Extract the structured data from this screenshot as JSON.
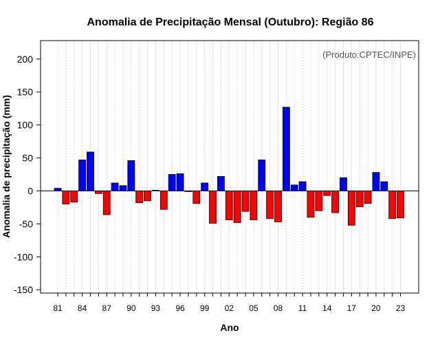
{
  "chart_data": {
    "type": "bar",
    "title": "Anomalia de Precipitação Mensal (Outubro): Região 86",
    "xlabel": "Ano",
    "ylabel": "Anomalia de precipitação (mm)",
    "credit": "(Produto:CPTEC/INPE)",
    "ylim": [
      -155,
      228
    ],
    "yticks": [
      200,
      150,
      100,
      50,
      0,
      -50,
      -100,
      -150
    ],
    "x": [
      1981,
      1982,
      1983,
      1984,
      1985,
      1986,
      1987,
      1988,
      1989,
      1990,
      1991,
      1992,
      1993,
      1994,
      1995,
      1996,
      1997,
      1998,
      1999,
      2000,
      2001,
      2002,
      2003,
      2004,
      2005,
      2006,
      2007,
      2008,
      2009,
      2010,
      2011,
      2012,
      2013,
      2014,
      2015,
      2016,
      2017,
      2018,
      2019,
      2020,
      2021,
      2022,
      2023
    ],
    "values": [
      4,
      -20,
      -17,
      47,
      59,
      -4,
      -36,
      12,
      8,
      46,
      -18,
      -15,
      1,
      -28,
      25,
      26,
      -1,
      -19,
      12,
      -49,
      22,
      -44,
      -48,
      -31,
      -44,
      47,
      -42,
      -47,
      127,
      9,
      14,
      -40,
      -30,
      -7,
      -33,
      20,
      -52,
      -24,
      -19,
      28,
      14,
      -42,
      -41
    ],
    "xtick_labels": [
      "81",
      "84",
      "87",
      "90",
      "93",
      "96",
      "99",
      "02",
      "05",
      "08",
      "11",
      "14",
      "17",
      "20",
      "23"
    ],
    "xtick_years": [
      1981,
      1984,
      1987,
      1990,
      1993,
      1996,
      1999,
      2002,
      2005,
      2008,
      2011,
      2014,
      2017,
      2020,
      2023
    ],
    "colors": {
      "positive": "#0000ff",
      "negative": "#ff0000",
      "grid": "#d3d3d3"
    }
  }
}
